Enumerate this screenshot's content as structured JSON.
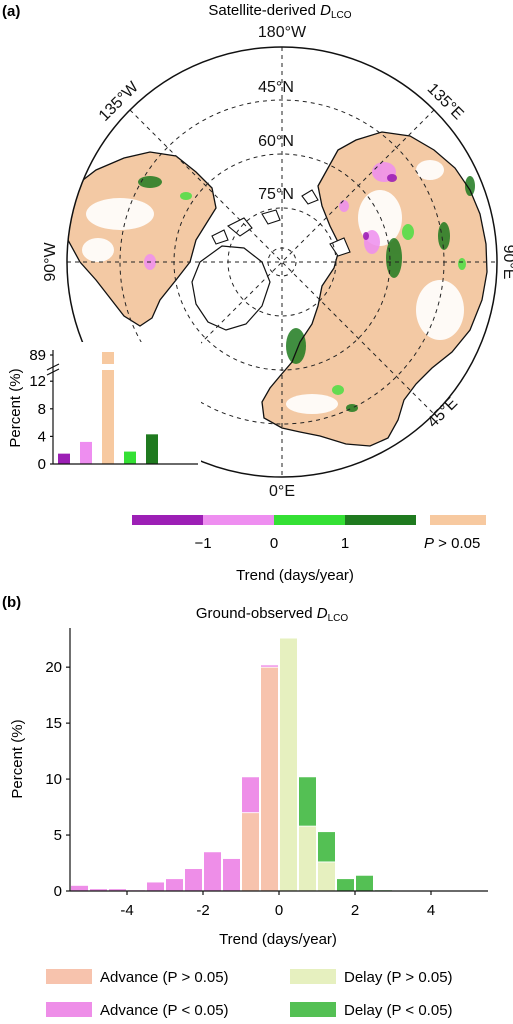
{
  "panel_a": {
    "label": "(a)",
    "title_main": "Satellite-derived ",
    "title_var": "D",
    "title_sub": "LCO",
    "map": {
      "lon_labels": [
        "180°W",
        "135°W",
        "135°E",
        "90°W",
        "90°E",
        "45°E",
        "0°E"
      ],
      "lat_labels": [
        "45°N",
        "60°N",
        "75°N"
      ]
    },
    "colorbar": {
      "colors": [
        "#9c1fb5",
        "#ee8ef0",
        "#34e034",
        "#1f7a1f"
      ],
      "nonsig_color": "#f7c9a0",
      "ticks": [
        "−1",
        "0",
        "1"
      ],
      "nonsig_label_var": "P",
      "nonsig_label_rest": " > 0.05",
      "xlabel": "Trend (days/year)"
    },
    "inset": {
      "ylabel": "Percent (%)",
      "yticks": [
        "0",
        "4",
        "8",
        "12",
        "89"
      ]
    }
  },
  "panel_b": {
    "label": "(b)",
    "title_main": "Ground-observed ",
    "title_var": "D",
    "title_sub": "LCO",
    "xlabel": "Trend (days/year)",
    "ylabel": "Percent (%)",
    "xticks": [
      "-4",
      "-2",
      "0",
      "2",
      "4"
    ],
    "yticks": [
      "0",
      "5",
      "10",
      "15",
      "20"
    ]
  },
  "legend": [
    {
      "label": "Advance (P > 0.05)",
      "color": "#f7c3ad"
    },
    {
      "label": "Delay (P > 0.05)",
      "color": "#e6f0bf"
    },
    {
      "label": "Advance (P < 0.05)",
      "color": "#ee8ee8"
    },
    {
      "label": "Delay (P < 0.05)",
      "color": "#54c054"
    }
  ],
  "chart_data": [
    {
      "type": "bar",
      "title": "",
      "ylabel": "Percent (%)",
      "y_break": [
        14,
        88
      ],
      "categories": [
        "",
        "",
        "",
        "",
        ""
      ],
      "colors": [
        "#9c1fb5",
        "#ee8ef0",
        "#f7c9a0",
        "#34e034",
        "#1f7a1f"
      ],
      "values": [
        1.5,
        3.2,
        89,
        1.8,
        4.3
      ]
    },
    {
      "type": "bar",
      "title": "Ground-observed DLCO",
      "xlabel": "Trend (days/year)",
      "ylabel": "Percent (%)",
      "xlim": [
        -5.5,
        5.5
      ],
      "ylim": [
        0,
        23.5
      ],
      "bin_width": 0.5,
      "x": [
        -5.25,
        -4.75,
        -4.25,
        -3.75,
        -3.25,
        -2.75,
        -2.25,
        -1.75,
        -1.25,
        -0.75,
        -0.25,
        0.25,
        0.75,
        1.25,
        1.75,
        2.25,
        2.75
      ],
      "series": [
        {
          "name": "Advance (P > 0.05)",
          "values": [
            0,
            0,
            0,
            0,
            0,
            0,
            0,
            0,
            0,
            7.0,
            20.0,
            0,
            0,
            0,
            0,
            0,
            0
          ]
        },
        {
          "name": "Advance (P < 0.05)",
          "values": [
            0.5,
            0.2,
            0.2,
            0.1,
            0.8,
            1.1,
            2.0,
            3.5,
            2.9,
            3.2,
            0.2,
            0,
            0,
            0,
            0,
            0,
            0
          ]
        },
        {
          "name": "Delay (P > 0.05)",
          "values": [
            0,
            0,
            0,
            0,
            0,
            0,
            0,
            0,
            0,
            0,
            0,
            22.6,
            5.8,
            2.6,
            0,
            0,
            0
          ]
        },
        {
          "name": "Delay (P < 0.05)",
          "values": [
            0,
            0,
            0,
            0,
            0,
            0,
            0,
            0,
            0,
            0,
            0,
            0,
            4.4,
            2.7,
            1.1,
            1.4,
            0.1
          ]
        }
      ]
    }
  ]
}
